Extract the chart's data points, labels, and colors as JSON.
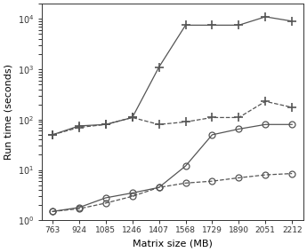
{
  "x": [
    763,
    924,
    1085,
    1246,
    1407,
    1568,
    1729,
    1890,
    2051,
    2212
  ],
  "kmeans_2gb": [
    50,
    75,
    80,
    110,
    1100,
    7500,
    7500,
    7500,
    11000,
    9000
  ],
  "kmeans_32gb": [
    50,
    70,
    80,
    110,
    80,
    90,
    110,
    110,
    230,
    175
  ],
  "kaverages_2gb": [
    1.5,
    1.8,
    2.8,
    3.5,
    4.5,
    12,
    50,
    65,
    80,
    80
  ],
  "kaverages_32gb": [
    1.5,
    1.7,
    2.2,
    3.0,
    4.5,
    5.5,
    6.0,
    7.0,
    8.0,
    8.5
  ],
  "xlabel": "Matrix size (MB)",
  "ylabel": "Run time (seconds)",
  "ylim_min": 1,
  "ylim_max": 20000,
  "color": "#555555",
  "linewidth": 0.9,
  "plus_markersize": 7,
  "circle_markersize": 5,
  "fontsize_labels": 8,
  "fontsize_ticks": 6.5
}
